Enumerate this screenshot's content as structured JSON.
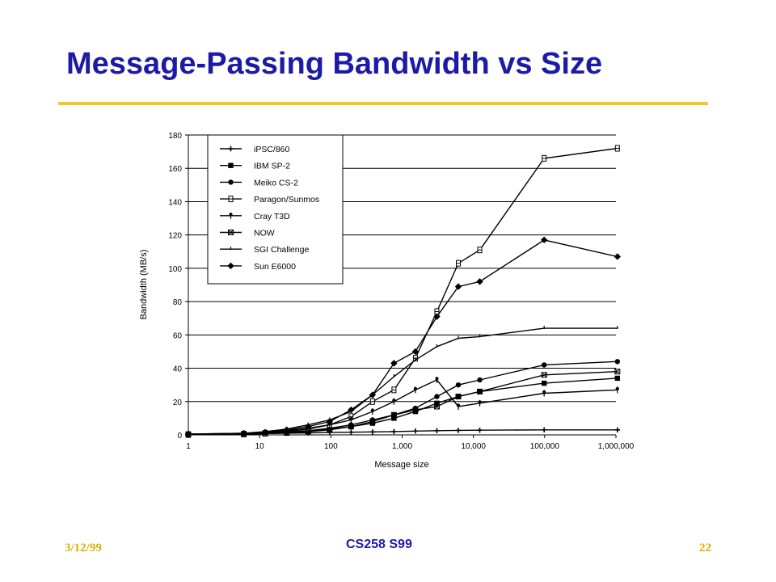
{
  "slide": {
    "title": "Message-Passing Bandwidth vs Size",
    "footer_date": "3/12/99",
    "footer_course": "CS258 S99",
    "footer_page": "22"
  },
  "colors": {
    "title": "#1d1aa6",
    "rule": "#f2c624",
    "footer_accent": "#e0b000",
    "series": "#000000"
  },
  "chart_data": {
    "type": "line",
    "xlabel": "Message size",
    "ylabel": "Bandwidth (MB/s)",
    "xscale": "log",
    "xlim": [
      1,
      1000000
    ],
    "ylim": [
      0,
      180
    ],
    "x_ticks": [
      1,
      10,
      100,
      1000,
      10000,
      100000,
      1000000
    ],
    "x_tick_labels": [
      "1",
      "10",
      "100",
      "1,000",
      "10,000",
      "100,000",
      "1,000,000"
    ],
    "y_ticks": [
      0,
      20,
      40,
      60,
      80,
      100,
      120,
      140,
      160,
      180
    ],
    "y_tick_labels": [
      "0",
      "20",
      "40",
      "60",
      "80",
      "100",
      "120",
      "140",
      "160",
      "180"
    ],
    "grid": "horizontal",
    "legend_position": "top-left",
    "series": [
      {
        "name": "iPSC/860",
        "marker": "plus",
        "x": [
          1,
          6,
          12,
          24,
          48,
          96,
          192,
          384,
          768,
          1536,
          3072,
          6144,
          12288,
          98304,
          1048576
        ],
        "y": [
          0.3,
          0.5,
          0.8,
          1.0,
          1.2,
          1.5,
          1.6,
          1.8,
          2.0,
          2.3,
          2.5,
          2.7,
          2.8,
          3.0,
          3.0
        ]
      },
      {
        "name": "IBM SP-2",
        "marker": "square",
        "x": [
          1,
          6,
          12,
          24,
          48,
          96,
          192,
          384,
          768,
          1536,
          3072,
          6144,
          12288,
          98304,
          1048576
        ],
        "y": [
          0.2,
          0.5,
          1.0,
          1.5,
          2.5,
          3.5,
          5.0,
          7.0,
          10.0,
          14.0,
          19.0,
          23.0,
          26.0,
          31.0,
          34.0
        ]
      },
      {
        "name": "Meiko CS-2",
        "marker": "circle",
        "x": [
          1,
          6,
          12,
          24,
          48,
          96,
          192,
          384,
          768,
          1536,
          3072,
          6144,
          12288,
          98304,
          1048576
        ],
        "y": [
          0.3,
          0.6,
          1.0,
          1.5,
          2.5,
          4.0,
          6.0,
          9.0,
          12.0,
          16.0,
          23.0,
          30.0,
          33.0,
          42.0,
          44.0
        ]
      },
      {
        "name": "Paragon/Sunmos",
        "marker": "box",
        "x": [
          1,
          6,
          12,
          24,
          48,
          96,
          192,
          384,
          768,
          1536,
          3072,
          6144,
          12288,
          98304,
          1048576
        ],
        "y": [
          0.2,
          0.5,
          1.0,
          2.0,
          3.5,
          6.0,
          11.0,
          20.0,
          27.0,
          46.0,
          74.0,
          103.0,
          111.0,
          166.0,
          172.0
        ]
      },
      {
        "name": "Cray T3D",
        "marker": "dagger",
        "x": [
          1,
          6,
          12,
          24,
          48,
          96,
          192,
          384,
          768,
          1536,
          3072,
          6144,
          12288,
          98304,
          1048576
        ],
        "y": [
          0.3,
          0.8,
          1.5,
          2.5,
          4.0,
          6.0,
          9.0,
          14.0,
          20.0,
          27.0,
          33.0,
          17.0,
          19.0,
          25.0,
          27.0
        ]
      },
      {
        "name": "NOW",
        "marker": "cross-box",
        "x": [
          1,
          6,
          12,
          24,
          48,
          96,
          192,
          384,
          768,
          1536,
          3072,
          6144,
          12288,
          98304,
          1048576
        ],
        "y": [
          0.2,
          0.5,
          0.8,
          1.2,
          2.0,
          3.0,
          5.0,
          8.0,
          12.0,
          15.0,
          17.0,
          23.0,
          26.0,
          36.0,
          38.0
        ]
      },
      {
        "name": "SGI Challenge",
        "marker": "tick",
        "x": [
          1,
          6,
          12,
          24,
          48,
          96,
          192,
          384,
          768,
          1536,
          3072,
          6144,
          12288,
          98304,
          1048576
        ],
        "y": [
          0.5,
          1.0,
          2.0,
          3.5,
          6.0,
          9.0,
          14.0,
          24.0,
          35.0,
          45.0,
          53.0,
          58.0,
          59.0,
          64.0,
          64.0
        ]
      },
      {
        "name": "Sun E6000",
        "marker": "diamond",
        "x": [
          1,
          6,
          12,
          24,
          48,
          96,
          192,
          384,
          768,
          1536,
          3072,
          6144,
          12288,
          98304,
          1048576
        ],
        "y": [
          0.5,
          1.0,
          1.5,
          3.0,
          5.0,
          8.0,
          15.0,
          24.0,
          43.0,
          50.0,
          71.0,
          89.0,
          92.0,
          117.0,
          107.0
        ]
      }
    ]
  }
}
